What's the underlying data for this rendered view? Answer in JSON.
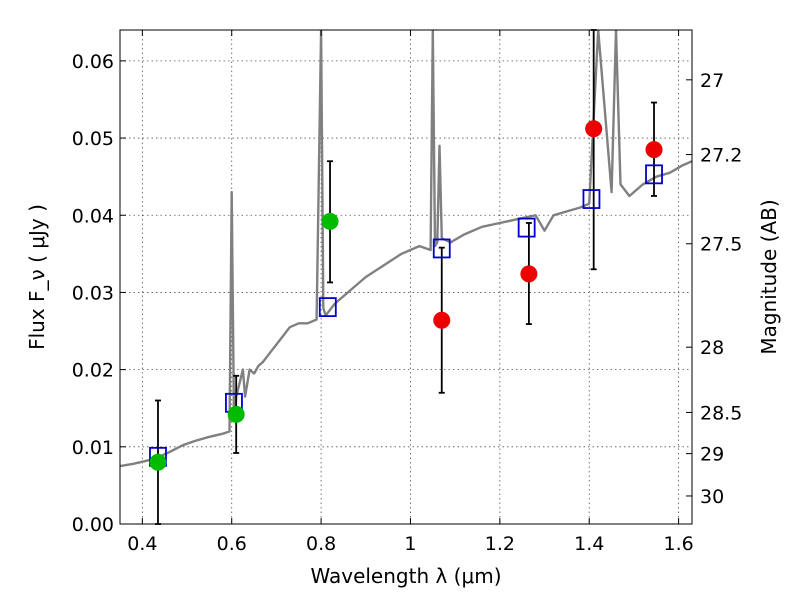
{
  "chart_data": {
    "type": "scatter",
    "xlabel": "Wavelength  λ (μm)",
    "ylabel": "Flux  F_ν  ( μJy )",
    "ylabel_right": "Magnitude (AB)",
    "xlim": [
      0.35,
      1.63
    ],
    "ylim": [
      0.0,
      0.064
    ],
    "grid": true,
    "x_ticks": [
      {
        "value": 0.4,
        "label": "0.4"
      },
      {
        "value": 0.6,
        "label": "0.6"
      },
      {
        "value": 0.8,
        "label": "0.8"
      },
      {
        "value": 1.0,
        "label": "1"
      },
      {
        "value": 1.2,
        "label": "1.2"
      },
      {
        "value": 1.4,
        "label": "1.4"
      },
      {
        "value": 1.6,
        "label": "1.6"
      }
    ],
    "y_ticks": [
      {
        "value": 0.0,
        "label": "0.00"
      },
      {
        "value": 0.01,
        "label": "0.01"
      },
      {
        "value": 0.02,
        "label": "0.02"
      },
      {
        "value": 0.03,
        "label": "0.03"
      },
      {
        "value": 0.04,
        "label": "0.04"
      },
      {
        "value": 0.05,
        "label": "0.05"
      },
      {
        "value": 0.06,
        "label": "0.06"
      }
    ],
    "right_ticks": [
      {
        "mag": 27,
        "label": "27"
      },
      {
        "mag": 27.2,
        "label": "27.2"
      },
      {
        "mag": 27.5,
        "label": "27.5"
      },
      {
        "mag": 28,
        "label": "28"
      },
      {
        "mag": 28.5,
        "label": "28.5"
      },
      {
        "mag": 29,
        "label": "29"
      },
      {
        "mag": 30,
        "label": "30"
      }
    ],
    "colors": {
      "template": "#808080",
      "model": "#0000cc",
      "green": "#00bb00",
      "red": "#ee0000",
      "errorbar": "#000000",
      "grid": "#555555"
    },
    "template_spectrum": {
      "x": [
        0.35,
        0.38,
        0.41,
        0.43,
        0.46,
        0.49,
        0.52,
        0.55,
        0.58,
        0.595,
        0.6,
        0.605,
        0.61,
        0.625,
        0.63,
        0.64,
        0.65,
        0.66,
        0.67,
        0.69,
        0.71,
        0.73,
        0.75,
        0.77,
        0.79,
        0.8,
        0.805,
        0.81,
        0.83,
        0.86,
        0.9,
        0.94,
        0.98,
        1.02,
        1.045,
        1.05,
        1.055,
        1.06,
        1.065,
        1.07,
        1.09,
        1.12,
        1.16,
        1.2,
        1.24,
        1.28,
        1.3,
        1.32,
        1.35,
        1.38,
        1.4,
        1.42,
        1.45,
        1.46,
        1.47,
        1.49,
        1.52,
        1.55,
        1.58,
        1.61,
        1.63
      ],
      "y": [
        0.0075,
        0.0078,
        0.0082,
        0.0085,
        0.0093,
        0.0102,
        0.0108,
        0.0113,
        0.0117,
        0.012,
        0.043,
        0.0135,
        0.0165,
        0.02,
        0.0165,
        0.02,
        0.0195,
        0.0205,
        0.021,
        0.0225,
        0.024,
        0.0255,
        0.026,
        0.026,
        0.0265,
        0.064,
        0.028,
        0.027,
        0.0285,
        0.03,
        0.032,
        0.0335,
        0.035,
        0.036,
        0.0355,
        0.064,
        0.036,
        0.0365,
        0.049,
        0.037,
        0.0365,
        0.0375,
        0.0385,
        0.039,
        0.0395,
        0.04,
        0.038,
        0.04,
        0.0405,
        0.041,
        0.0415,
        0.064,
        0.043,
        0.064,
        0.044,
        0.0425,
        0.044,
        0.045,
        0.0455,
        0.0465,
        0.047
      ]
    },
    "series": [
      {
        "marker": "open-square",
        "points": [
          {
            "x": 0.435,
            "y": 0.0087
          },
          {
            "x": 0.605,
            "y": 0.0157
          },
          {
            "x": 0.815,
            "y": 0.0281
          },
          {
            "x": 1.07,
            "y": 0.0357
          },
          {
            "x": 1.26,
            "y": 0.0384
          },
          {
            "x": 1.405,
            "y": 0.0421
          },
          {
            "x": 1.545,
            "y": 0.0453
          }
        ]
      },
      {
        "marker": "green-circle",
        "points": [
          {
            "x": 0.435,
            "y": 0.008,
            "yerr_low": 0.0,
            "yerr_high": 0.016
          },
          {
            "x": 0.61,
            "y": 0.0142,
            "yerr_low": 0.0092,
            "yerr_high": 0.0192
          },
          {
            "x": 0.82,
            "y": 0.0392,
            "yerr_low": 0.0313,
            "yerr_high": 0.047
          }
        ]
      },
      {
        "marker": "red-circle",
        "points": [
          {
            "x": 1.07,
            "y": 0.0264,
            "yerr_low": 0.017,
            "yerr_high": 0.0358
          },
          {
            "x": 1.265,
            "y": 0.0324,
            "yerr_low": 0.0259,
            "yerr_high": 0.039
          },
          {
            "x": 1.41,
            "y": 0.0512,
            "yerr_low": 0.033,
            "yerr_high": 0.064
          },
          {
            "x": 1.545,
            "y": 0.0485,
            "yerr_low": 0.0425,
            "yerr_high": 0.0546
          }
        ]
      }
    ]
  }
}
